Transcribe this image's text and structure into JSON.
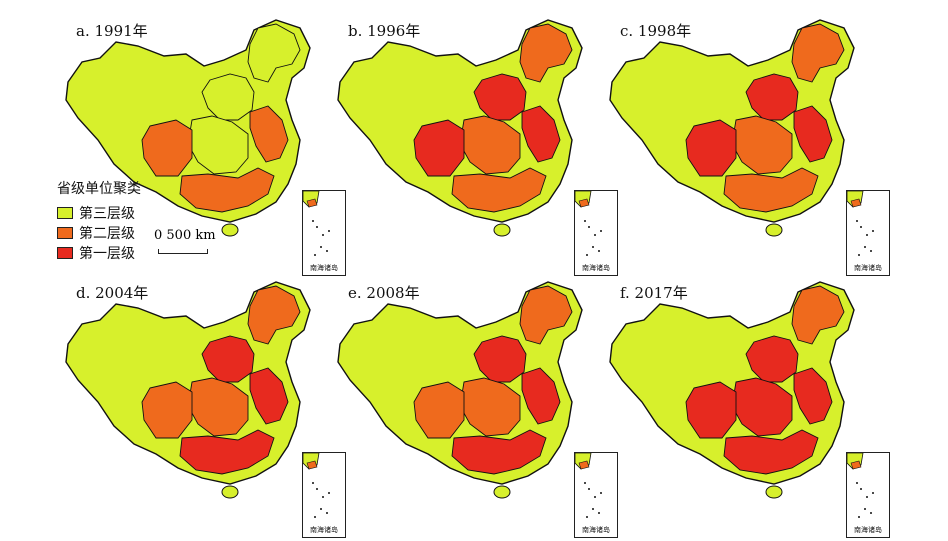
{
  "colors": {
    "tier3": "#d7f02c",
    "tier2": "#ef6a1d",
    "tier1": "#e72a1f",
    "border": "#111111"
  },
  "inset_label": "南海诸岛",
  "legend": {
    "title": "省级单位聚类",
    "items": [
      {
        "label": "第三层级",
        "color": "#d7f02c"
      },
      {
        "label": "第二层级",
        "color": "#ef6a1d"
      },
      {
        "label": "第一层级",
        "color": "#e72a1f"
      }
    ]
  },
  "scale": {
    "label": "0   500 km"
  },
  "panels": [
    {
      "title": "a. 1991年",
      "ne": "tier3",
      "north": "tier3",
      "east": "tier2",
      "central": "tier3",
      "southwest": "tier2",
      "south": "tier2"
    },
    {
      "title": "b. 1996年",
      "ne": "tier2",
      "north": "tier1",
      "east": "tier1",
      "central": "tier2",
      "southwest": "tier1",
      "south": "tier2"
    },
    {
      "title": "c. 1998年",
      "ne": "tier2",
      "north": "tier1",
      "east": "tier1",
      "central": "tier2",
      "southwest": "tier1",
      "south": "tier2"
    },
    {
      "title": "d. 2004年",
      "ne": "tier2",
      "north": "tier1",
      "east": "tier1",
      "central": "tier2",
      "southwest": "tier2",
      "south": "tier1"
    },
    {
      "title": "e. 2008年",
      "ne": "tier2",
      "north": "tier1",
      "east": "tier1",
      "central": "tier2",
      "southwest": "tier2",
      "south": "tier1"
    },
    {
      "title": "f. 2017年",
      "ne": "tier2",
      "north": "tier1",
      "east": "tier1",
      "central": "tier1",
      "southwest": "tier1",
      "south": "tier1"
    }
  ]
}
